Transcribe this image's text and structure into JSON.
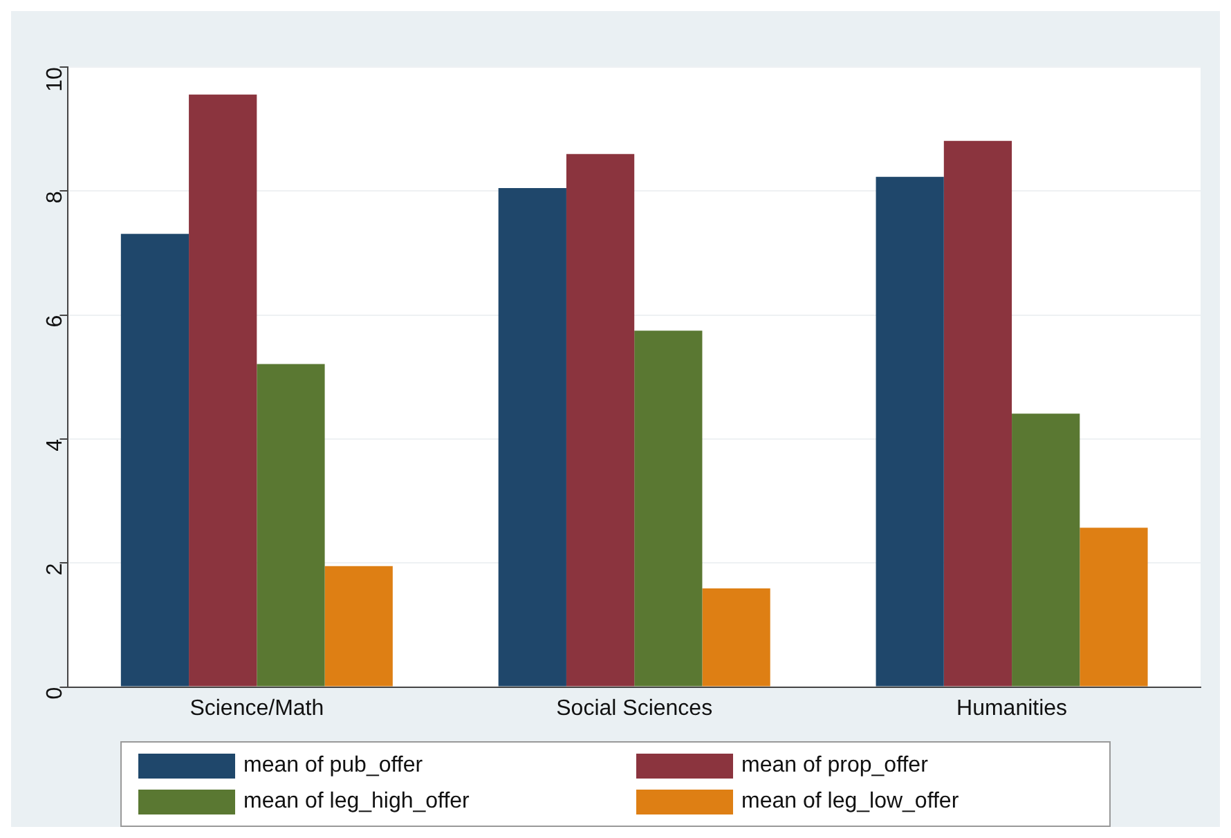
{
  "chart_data": {
    "type": "bar",
    "categories": [
      "Science/Math",
      "Social Sciences",
      "Humanities"
    ],
    "series": [
      {
        "name": "mean of pub_offer",
        "color": "#1f476b",
        "values": [
          7.31,
          8.05,
          8.23
        ]
      },
      {
        "name": "mean of prop_offer",
        "color": "#8b343e",
        "values": [
          9.56,
          8.6,
          8.81
        ]
      },
      {
        "name": "mean of leg_high_offer",
        "color": "#5a7832",
        "values": [
          5.21,
          5.75,
          4.41
        ]
      },
      {
        "name": "mean of leg_low_offer",
        "color": "#de7f14",
        "values": [
          1.95,
          1.59,
          2.57
        ]
      }
    ],
    "ylim": [
      0,
      10
    ],
    "yticks": [
      0,
      2,
      4,
      6,
      8,
      10
    ],
    "grid": "y",
    "legend": "bottom"
  }
}
